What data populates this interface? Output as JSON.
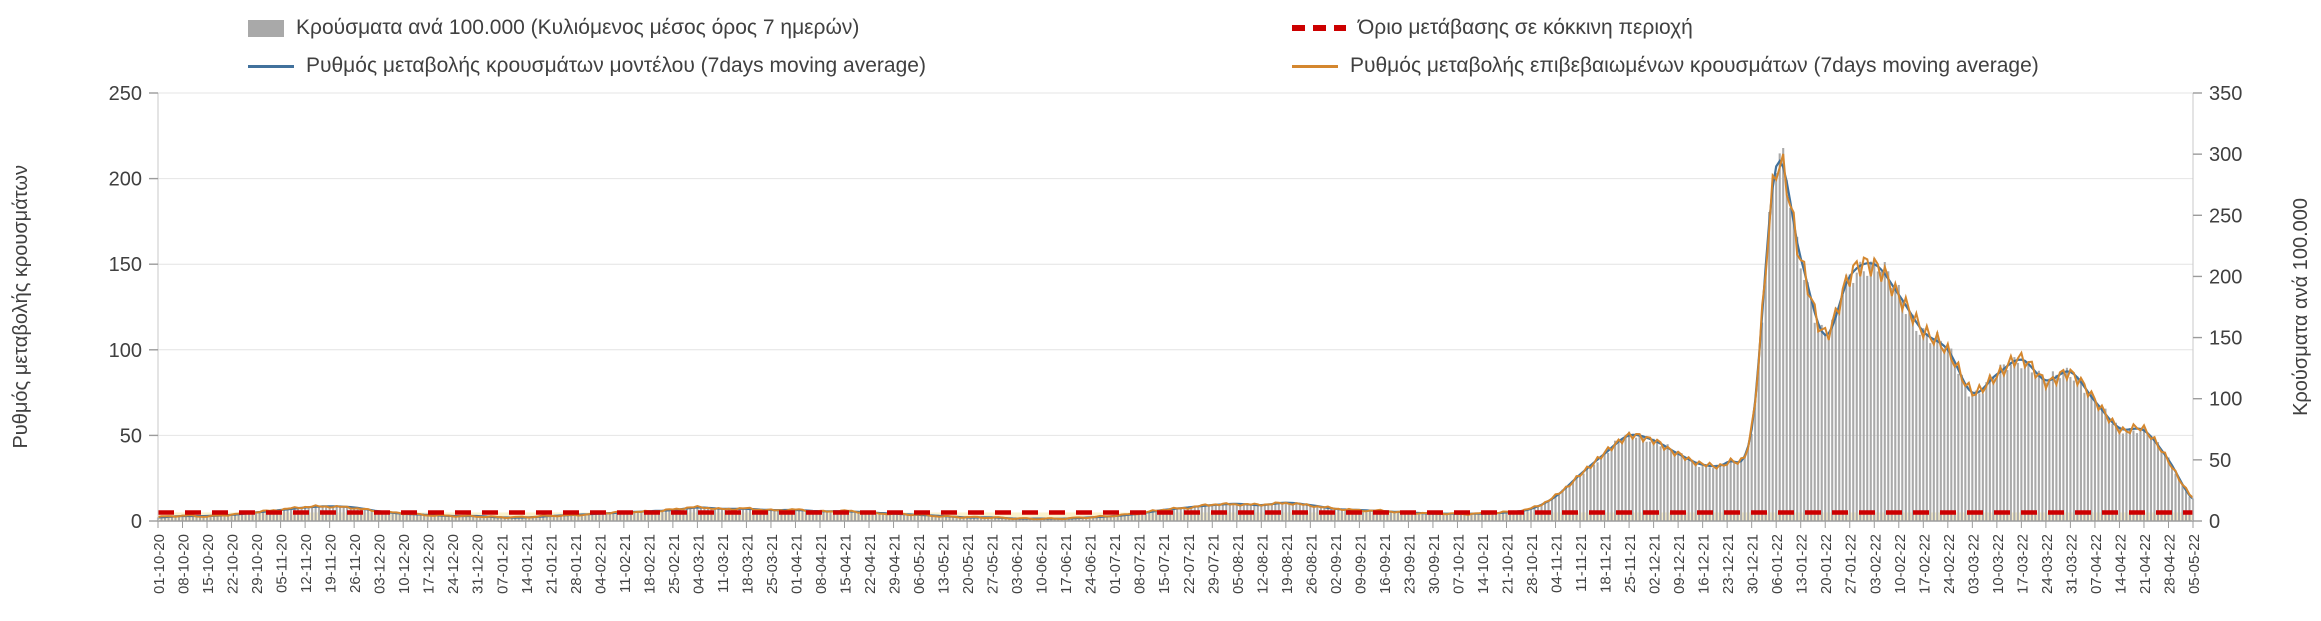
{
  "colors": {
    "bars": "#a9a9a9",
    "model_line": "#41719c",
    "confirmed_line": "#d4872f",
    "threshold": "#cc0000",
    "yellow_band": "#fbf2ce",
    "grid": "#e4e4e4",
    "axis": "#9b9b9b",
    "axis_text": "#404040"
  },
  "chart_data": {
    "type": "combo-bar-line",
    "title": "",
    "legend_position": "top",
    "grid": "horizontal",
    "legend": [
      {
        "label": "Κρούσματα ανά 100.000 (Κυλιόμενος μέσος όρος 7 ημερών)",
        "series_type": "bar",
        "color": "#a9a9a9"
      },
      {
        "label": "Όριο μετάβασης σε κόκκινη περιοχή",
        "series_type": "dashed-line",
        "color": "#cc0000"
      },
      {
        "label": "Ρυθμός μεταβολής κρουσμάτων μοντέλου (7days moving average)",
        "series_type": "line",
        "color": "#41719c"
      },
      {
        "label": "Ρυθμός μεταβολής επιβεβαιωμένων κρουσμάτων (7days moving average)",
        "series_type": "line",
        "color": "#d4872f"
      }
    ],
    "ylabel_left": "Ρυθμός μεταβολής κρουσμάτων",
    "ylabel_right": "Κρούσματα ανά 100.000",
    "left_axis": {
      "min": 0,
      "max": 250,
      "ticks": [
        0,
        50,
        100,
        150,
        200,
        250
      ]
    },
    "right_axis": {
      "min": 0,
      "max": 350,
      "ticks": [
        0,
        50,
        100,
        150,
        200,
        250,
        300,
        350
      ]
    },
    "threshold": {
      "value": 7,
      "axis": "right"
    },
    "categories": [
      "01-10-20",
      "08-10-20",
      "15-10-20",
      "22-10-20",
      "29-10-20",
      "05-11-20",
      "12-11-20",
      "19-11-20",
      "26-11-20",
      "03-12-20",
      "10-12-20",
      "17-12-20",
      "24-12-20",
      "31-12-20",
      "07-01-21",
      "14-01-21",
      "21-01-21",
      "28-01-21",
      "04-02-21",
      "11-02-21",
      "18-02-21",
      "25-02-21",
      "04-03-21",
      "11-03-21",
      "18-03-21",
      "25-03-21",
      "01-04-21",
      "08-04-21",
      "15-04-21",
      "22-04-21",
      "29-04-21",
      "06-05-21",
      "13-05-21",
      "20-05-21",
      "27-05-21",
      "03-06-21",
      "10-06-21",
      "17-06-21",
      "24-06-21",
      "01-07-21",
      "08-07-21",
      "15-07-21",
      "22-07-21",
      "29-07-21",
      "05-08-21",
      "12-08-21",
      "19-08-21",
      "26-08-21",
      "02-09-21",
      "09-09-21",
      "16-09-21",
      "23-09-21",
      "30-09-21",
      "07-10-21",
      "14-10-21",
      "21-10-21",
      "28-10-21",
      "04-11-21",
      "11-11-21",
      "18-11-21",
      "25-11-21",
      "02-12-21",
      "09-12-21",
      "16-12-21",
      "23-12-21",
      "30-12-21",
      "06-01-22",
      "13-01-22",
      "20-01-22",
      "27-01-22",
      "03-02-22",
      "10-02-22",
      "17-02-22",
      "24-02-22",
      "03-03-22",
      "10-03-22",
      "17-03-22",
      "24-03-22",
      "31-03-22",
      "07-04-22",
      "14-04-22",
      "21-04-22",
      "28-04-22",
      "05-05-22"
    ],
    "series": [
      {
        "name": "Κρούσματα ανά 100.000 (Κυλιόμενος μέσος όρος 7 ημερών)",
        "type": "bar",
        "axis": "right",
        "values": [
          3,
          4,
          4,
          5,
          7,
          9,
          11,
          12,
          11,
          8,
          6,
          5,
          4,
          4,
          3,
          3,
          4,
          5,
          6,
          7,
          8,
          9,
          11,
          10,
          10,
          9,
          9,
          8,
          8,
          7,
          6,
          5,
          4,
          3,
          3,
          2,
          2,
          2,
          3,
          4,
          6,
          9,
          11,
          13,
          14,
          13,
          15,
          13,
          10,
          9,
          8,
          7,
          6,
          6,
          6,
          7,
          10,
          20,
          38,
          55,
          70,
          66,
          55,
          46,
          48,
          75,
          290,
          215,
          152,
          200,
          210,
          185,
          155,
          140,
          105,
          120,
          132,
          115,
          122,
          98,
          76,
          74,
          50,
          18
        ]
      },
      {
        "name": "Ρυθμός μεταβολής κρουσμάτων μοντέλου (7days moving average)",
        "type": "line",
        "axis": "left",
        "values": [
          2.1,
          2.9,
          2.9,
          3.6,
          5,
          6.4,
          7.9,
          8.6,
          7.9,
          5.7,
          4.3,
          3.6,
          2.9,
          2.9,
          2.1,
          2.1,
          2.9,
          3.6,
          4.3,
          5,
          5.7,
          6.4,
          7.9,
          7.1,
          7.1,
          6.4,
          6.4,
          5.7,
          5.7,
          5,
          4.3,
          3.6,
          2.9,
          2.1,
          2.1,
          1.4,
          1.4,
          1.4,
          2.1,
          2.9,
          4.3,
          6.4,
          7.9,
          9.3,
          10,
          9.3,
          10.7,
          9.3,
          7.1,
          6.4,
          5.7,
          5,
          4.3,
          4.3,
          4.3,
          5,
          7.1,
          14.3,
          27.1,
          39.3,
          50,
          47.1,
          39.3,
          32.9,
          34.3,
          53.6,
          207.1,
          153.6,
          108.6,
          142.9,
          150,
          132.1,
          110.7,
          100,
          75,
          85.7,
          94.3,
          82.1,
          87.1,
          70,
          54.3,
          52.9,
          35.7,
          12.9
        ]
      },
      {
        "name": "Ρυθμός μεταβολής επιβεβαιωμένων κρουσμάτων (7days moving average)",
        "type": "line",
        "axis": "left",
        "values": [
          2.3,
          3.1,
          2.7,
          3.8,
          5.2,
          6.6,
          8.2,
          8.4,
          7.6,
          5.5,
          4.5,
          3.4,
          3,
          2.7,
          2.2,
          2.3,
          3,
          3.4,
          4.5,
          5.2,
          5.5,
          6.7,
          8.1,
          6.9,
          7.3,
          6.2,
          6.6,
          5.5,
          5.9,
          4.8,
          4.1,
          3.7,
          2.7,
          2.2,
          2,
          1.5,
          1.3,
          1.5,
          2.2,
          3.1,
          4.5,
          6.6,
          7.7,
          9.6,
          9.7,
          9.6,
          10.4,
          9,
          7.3,
          6.2,
          5.9,
          4.8,
          4.5,
          4.1,
          4.4,
          5.2,
          7.3,
          14.6,
          26.8,
          39.6,
          49.6,
          46.8,
          39,
          33.2,
          34,
          54,
          205.7,
          152.9,
          109.3,
          143.6,
          149.3,
          131.4,
          111.4,
          99.3,
          75.7,
          85,
          95,
          81.4,
          86.4,
          70.7,
          53.6,
          53.6,
          35,
          13.6
        ]
      }
    ]
  }
}
